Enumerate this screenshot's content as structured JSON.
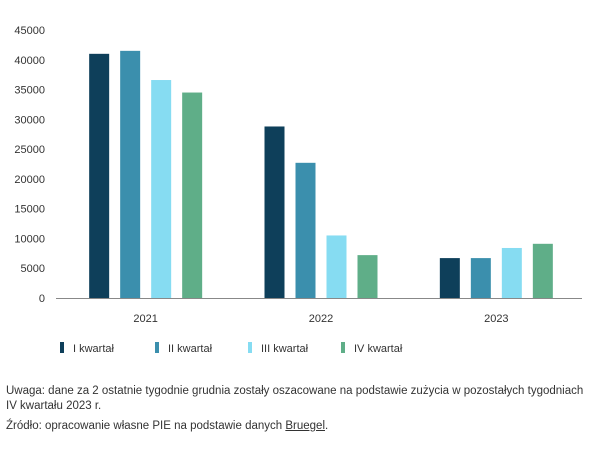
{
  "chart_data": {
    "type": "bar",
    "title": "",
    "xlabel": "",
    "ylabel": "",
    "categories": [
      "2021",
      "2022",
      "2023"
    ],
    "series": [
      {
        "name": "I kwartał",
        "color": "#0e3f5a",
        "values": [
          41000,
          28800,
          6700
        ]
      },
      {
        "name": "II kwartał",
        "color": "#3b8fad",
        "values": [
          41500,
          22700,
          6700
        ]
      },
      {
        "name": "III kwartał",
        "color": "#86dcf2",
        "values": [
          36600,
          10500,
          8400
        ]
      },
      {
        "name": "IV kwartał",
        "color": "#5fae88",
        "values": [
          34500,
          7200,
          9100
        ]
      }
    ],
    "ylim": [
      0,
      45000
    ],
    "yticks": [
      0,
      5000,
      10000,
      15000,
      20000,
      25000,
      30000,
      35000,
      40000,
      45000
    ],
    "grid": false,
    "legend": "bottom-left"
  },
  "notes": {
    "remark": "Uwaga: dane za 2 ostatnie tygodnie grudnia zostały oszacowane na podstawie zużycia w pozostałych tygodniach IV kwartału 2023 r.",
    "source_prefix": "Źródło: opracowanie własne PIE na podstawie danych ",
    "source_link": "Bruegel",
    "source_suffix": "."
  }
}
